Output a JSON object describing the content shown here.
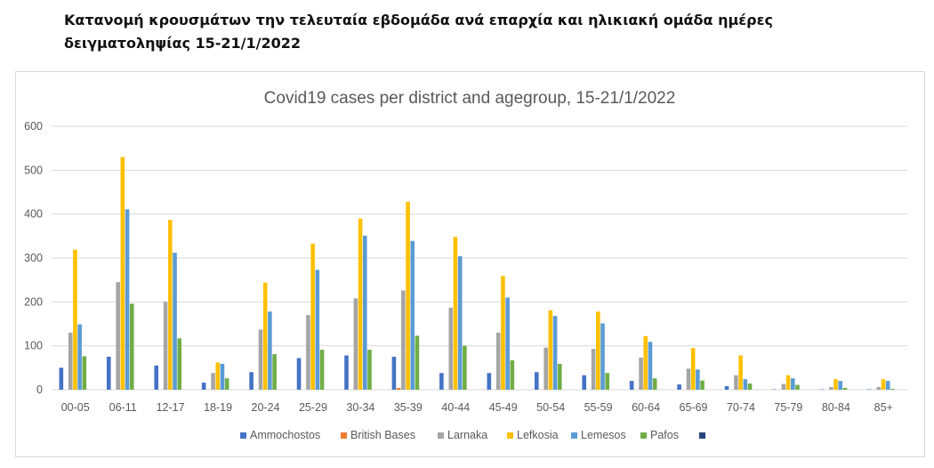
{
  "heading": "Κατανομή κρουσμάτων την τελευταία εβδομάδα ανά επαρχία και ηλικιακή ομάδα ημέρες δειγματοληψίας 15-21/1/2022",
  "chart_data": {
    "type": "bar",
    "title": "Covid19 cases per district and agegroup, 15-21/1/2022",
    "xlabel": "",
    "ylabel": "",
    "ylim": [
      0,
      600
    ],
    "yticks": [
      0,
      100,
      200,
      300,
      400,
      500,
      600
    ],
    "grid": true,
    "legend_position": "bottom",
    "categories": [
      "00-05",
      "06-11",
      "12-17",
      "18-19",
      "20-24",
      "25-29",
      "30-34",
      "35-39",
      "40-44",
      "45-49",
      "50-54",
      "55-59",
      "60-64",
      "65-69",
      "70-74",
      "75-79",
      "80-84",
      "85+"
    ],
    "series": [
      {
        "name": "Ammochostos",
        "color": "#4472c4",
        "values": [
          50,
          75,
          55,
          16,
          40,
          72,
          78,
          75,
          38,
          38,
          40,
          33,
          20,
          12,
          8,
          1,
          1,
          1
        ]
      },
      {
        "name": "British Bases",
        "color": "#ed7d31",
        "values": [
          0,
          0,
          0,
          0,
          0,
          0,
          0,
          4,
          0,
          0,
          0,
          0,
          0,
          0,
          0,
          0,
          0,
          0
        ]
      },
      {
        "name": "Larnaka",
        "color": "#a5a5a5",
        "values": [
          130,
          245,
          200,
          38,
          137,
          170,
          208,
          226,
          187,
          130,
          96,
          93,
          73,
          48,
          33,
          13,
          6,
          6
        ]
      },
      {
        "name": "Lefkosia",
        "color": "#ffc000",
        "values": [
          319,
          530,
          387,
          62,
          244,
          333,
          390,
          428,
          348,
          259,
          181,
          178,
          122,
          95,
          78,
          33,
          24,
          24
        ]
      },
      {
        "name": "Lemesos",
        "color": "#5b9bd5",
        "values": [
          149,
          411,
          312,
          59,
          178,
          273,
          351,
          339,
          304,
          210,
          168,
          151,
          109,
          46,
          24,
          26,
          20,
          20
        ]
      },
      {
        "name": "Pafos",
        "color": "#70ad47",
        "values": [
          76,
          196,
          117,
          26,
          81,
          91,
          91,
          123,
          100,
          67,
          59,
          38,
          26,
          21,
          14,
          11,
          4,
          2
        ]
      },
      {
        "name": "",
        "color": "#264478",
        "values": [
          0,
          0,
          0,
          0,
          0,
          0,
          0,
          0,
          0,
          0,
          0,
          0,
          0,
          0,
          0,
          0,
          0,
          0
        ]
      }
    ]
  }
}
